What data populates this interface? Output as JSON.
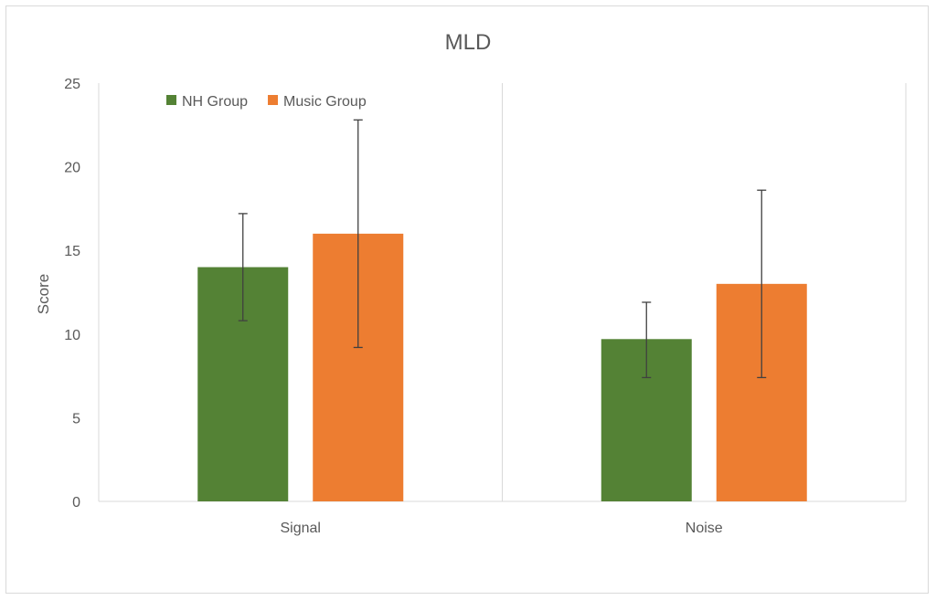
{
  "chart_data": {
    "type": "bar",
    "title": "MLD",
    "xlabel": "",
    "ylabel": "Score",
    "categories": [
      "Signal",
      "Noise"
    ],
    "ylim": [
      0,
      25
    ],
    "yticks": [
      0,
      5,
      10,
      15,
      20,
      25
    ],
    "grid": false,
    "legend_position": "top-left",
    "series": [
      {
        "name": "NH Group",
        "color": "#548235",
        "values": [
          14.0,
          9.7
        ],
        "error_low": [
          10.8,
          7.4
        ],
        "error_high": [
          17.2,
          11.9
        ]
      },
      {
        "name": "Music Group",
        "color": "#ED7D31",
        "values": [
          16.0,
          13.0
        ],
        "error_low": [
          9.2,
          7.4
        ],
        "error_high": [
          22.8,
          18.6
        ]
      }
    ]
  }
}
